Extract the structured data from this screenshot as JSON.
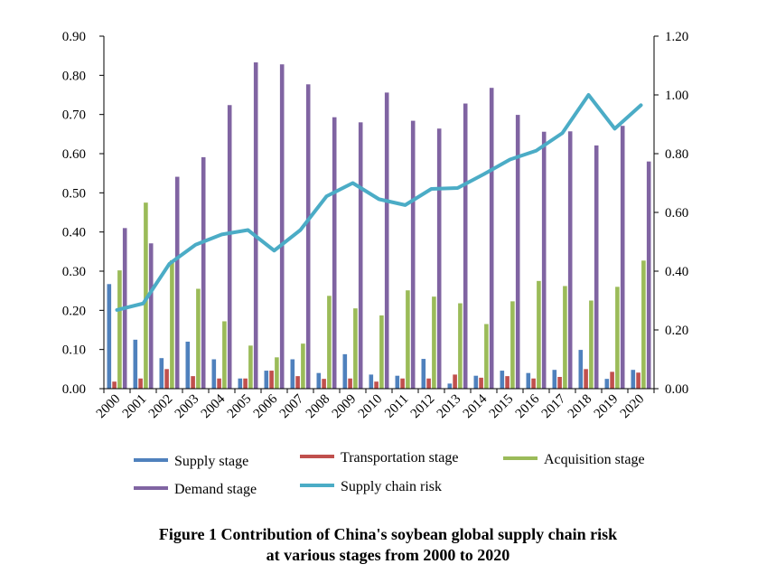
{
  "chart_data": {
    "type": "bar",
    "categories": [
      "2000",
      "2001",
      "2002",
      "2003",
      "2004",
      "2005",
      "2006",
      "2007",
      "2008",
      "2009",
      "2010",
      "2011",
      "2012",
      "2013",
      "2014",
      "2015",
      "2016",
      "2017",
      "2018",
      "2019",
      "2020"
    ],
    "series": [
      {
        "name": "Supply stage",
        "axis": "left",
        "kind": "bar",
        "color": "#4F81BD",
        "values": [
          0.267,
          0.125,
          0.078,
          0.12,
          0.075,
          0.026,
          0.046,
          0.075,
          0.04,
          0.088,
          0.036,
          0.033,
          0.076,
          0.013,
          0.033,
          0.046,
          0.04,
          0.048,
          0.099,
          0.025,
          0.048
        ]
      },
      {
        "name": "Transportation stage",
        "axis": "left",
        "kind": "bar",
        "color": "#C0504D",
        "values": [
          0.018,
          0.026,
          0.05,
          0.032,
          0.026,
          0.026,
          0.046,
          0.032,
          0.025,
          0.026,
          0.018,
          0.026,
          0.026,
          0.036,
          0.028,
          0.032,
          0.026,
          0.03,
          0.05,
          0.043,
          0.041
        ]
      },
      {
        "name": "Acquisition stage",
        "axis": "left",
        "kind": "bar",
        "color": "#9BBB59",
        "values": [
          0.302,
          0.475,
          0.328,
          0.255,
          0.172,
          0.11,
          0.08,
          0.115,
          0.237,
          0.205,
          0.187,
          0.251,
          0.235,
          0.218,
          0.165,
          0.223,
          0.275,
          0.262,
          0.225,
          0.26,
          0.327
        ]
      },
      {
        "name": "Demand stage",
        "axis": "left",
        "kind": "bar",
        "color": "#8064A2",
        "values": [
          0.41,
          0.371,
          0.541,
          0.591,
          0.724,
          0.833,
          0.828,
          0.777,
          0.693,
          0.68,
          0.756,
          0.684,
          0.664,
          0.728,
          0.768,
          0.699,
          0.656,
          0.657,
          0.621,
          0.671,
          0.58
        ]
      },
      {
        "name": "Supply chain risk",
        "axis": "right",
        "kind": "line",
        "color": "#4BACC6",
        "values": [
          0.268,
          0.29,
          0.425,
          0.49,
          0.525,
          0.54,
          0.47,
          0.54,
          0.655,
          0.7,
          0.645,
          0.625,
          0.68,
          0.683,
          0.73,
          0.78,
          0.81,
          0.87,
          1.0,
          0.885,
          0.965
        ]
      }
    ],
    "y_left": {
      "range": [
        0,
        0.9
      ],
      "ticks": [
        "0.00",
        "0.10",
        "0.20",
        "0.30",
        "0.40",
        "0.50",
        "0.60",
        "0.70",
        "0.80",
        "0.90"
      ]
    },
    "y_right": {
      "range": [
        0,
        1.2
      ],
      "ticks": [
        "0.00",
        "0.20",
        "0.40",
        "0.60",
        "0.80",
        "1.00",
        "1.20"
      ]
    },
    "grid": false,
    "legend_position": "bottom"
  },
  "caption": {
    "line1": "Figure 1  Contribution of China's soybean global supply chain risk",
    "line2": "at various stages from 2000 to 2020"
  }
}
